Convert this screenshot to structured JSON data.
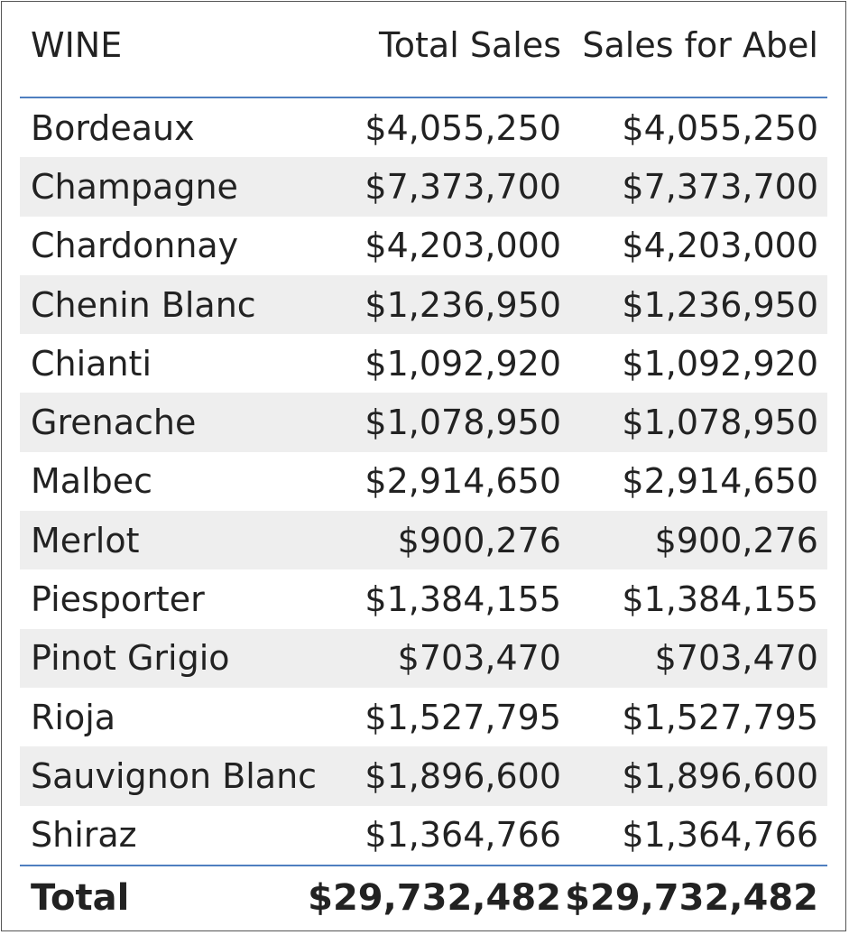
{
  "table": {
    "columns": [
      "WINE",
      "Total Sales",
      "Sales for Abel"
    ],
    "rows": [
      {
        "wine": "Bordeaux",
        "total_sales": "$4,055,250",
        "sales_for_abel": "$4,055,250"
      },
      {
        "wine": "Champagne",
        "total_sales": "$7,373,700",
        "sales_for_abel": "$7,373,700"
      },
      {
        "wine": "Chardonnay",
        "total_sales": "$4,203,000",
        "sales_for_abel": "$4,203,000"
      },
      {
        "wine": "Chenin Blanc",
        "total_sales": "$1,236,950",
        "sales_for_abel": "$1,236,950"
      },
      {
        "wine": "Chianti",
        "total_sales": "$1,092,920",
        "sales_for_abel": "$1,092,920"
      },
      {
        "wine": "Grenache",
        "total_sales": "$1,078,950",
        "sales_for_abel": "$1,078,950"
      },
      {
        "wine": "Malbec",
        "total_sales": "$2,914,650",
        "sales_for_abel": "$2,914,650"
      },
      {
        "wine": "Merlot",
        "total_sales": "$900,276",
        "sales_for_abel": "$900,276"
      },
      {
        "wine": "Piesporter",
        "total_sales": "$1,384,155",
        "sales_for_abel": "$1,384,155"
      },
      {
        "wine": "Pinot Grigio",
        "total_sales": "$703,470",
        "sales_for_abel": "$703,470"
      },
      {
        "wine": "Rioja",
        "total_sales": "$1,527,795",
        "sales_for_abel": "$1,527,795"
      },
      {
        "wine": "Sauvignon Blanc",
        "total_sales": "$1,896,600",
        "sales_for_abel": "$1,896,600"
      },
      {
        "wine": "Shiraz",
        "total_sales": "$1,364,766",
        "sales_for_abel": "$1,364,766"
      }
    ],
    "total": {
      "label": "Total",
      "total_sales": "$29,732,482",
      "sales_for_abel": "$29,732,482"
    }
  },
  "colors": {
    "accent_line": "#4f7fc0",
    "alt_row": "#eeeeee",
    "text": "#222222"
  }
}
